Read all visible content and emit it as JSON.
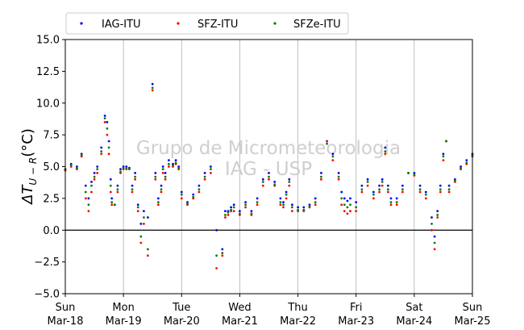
{
  "chart_data": {
    "type": "scatter",
    "title": "",
    "xlabel": "",
    "ylabel": "ΔT",
    "ylabel_subscript": "U − R",
    "ylabel_unit": "(°C)",
    "ylim": [
      -5,
      15
    ],
    "xlim": [
      0,
      7
    ],
    "yticks": [
      -5,
      -2.5,
      0,
      2.5,
      5,
      7.5,
      10,
      12.5,
      15
    ],
    "ytick_labels": [
      "−5.0",
      "−2.5",
      "0.0",
      "2.5",
      "5.0",
      "7.5",
      "10.0",
      "12.5",
      "15.0"
    ],
    "xticks": [
      0,
      1,
      2,
      3,
      4,
      5,
      6,
      7
    ],
    "xtick_labels": [
      [
        "Sun",
        "Mar-18"
      ],
      [
        "Mon",
        "Mar-19"
      ],
      [
        "Tue",
        "Mar-20"
      ],
      [
        "Wed",
        "Mar-21"
      ],
      [
        "Thu",
        "Mar-22"
      ],
      [
        "Fri",
        "Mar-23"
      ],
      [
        "Sat",
        "Mar-24"
      ],
      [
        "Sun",
        "Mar-25"
      ]
    ],
    "x_unit": "days since Sun Mar-18 00:00",
    "grid": "vertical at day ticks",
    "reference_line_y": 0,
    "legend_position": "top, above plot",
    "watermark": [
      "Grupo de Micrometeorologia",
      "IAG - USP"
    ],
    "series": [
      {
        "name": "IAG-ITU",
        "color": "#0000ff",
        "x": [
          0.0,
          0.1,
          0.2,
          0.28,
          0.35,
          0.4,
          0.45,
          0.5,
          0.55,
          0.62,
          0.68,
          0.72,
          0.75,
          0.78,
          0.8,
          0.85,
          0.9,
          0.95,
          1.0,
          1.05,
          1.1,
          1.15,
          1.2,
          1.25,
          1.3,
          1.35,
          1.42,
          1.5,
          1.55,
          1.6,
          1.65,
          1.68,
          1.72,
          1.78,
          1.85,
          1.9,
          1.95,
          2.0,
          2.1,
          2.2,
          2.3,
          2.4,
          2.5,
          2.6,
          2.7,
          2.75,
          2.8,
          2.85,
          2.9,
          3.0,
          3.1,
          3.2,
          3.3,
          3.4,
          3.5,
          3.6,
          3.7,
          3.75,
          3.8,
          3.85,
          3.9,
          4.0,
          4.1,
          4.2,
          4.3,
          4.4,
          4.5,
          4.6,
          4.7,
          4.75,
          4.8,
          4.85,
          4.9,
          5.0,
          5.1,
          5.2,
          5.3,
          5.4,
          5.45,
          5.5,
          5.55,
          5.6,
          5.7,
          5.8,
          5.9,
          6.0,
          6.1,
          6.2,
          6.3,
          6.35,
          6.4,
          6.45,
          6.5,
          6.55,
          6.6,
          6.7,
          6.8,
          6.9,
          7.0
        ],
        "values": [
          4.8,
          5.2,
          5.0,
          6.0,
          3.5,
          2.5,
          3.8,
          4.5,
          5.0,
          6.5,
          9.0,
          8.5,
          7.0,
          4.0,
          2.5,
          2.0,
          3.5,
          4.8,
          5.0,
          5.0,
          4.9,
          3.5,
          4.5,
          2.0,
          0.5,
          1.5,
          1.0,
          11.5,
          4.5,
          2.5,
          3.5,
          5.0,
          4.5,
          5.5,
          5.2,
          5.5,
          5.0,
          3.0,
          2.2,
          2.8,
          3.5,
          4.5,
          5.0,
          0.0,
          -1.5,
          1.5,
          1.5,
          1.8,
          2.0,
          1.5,
          2.2,
          1.5,
          2.5,
          4.0,
          4.5,
          3.8,
          2.5,
          2.2,
          3.0,
          4.0,
          2.0,
          1.8,
          1.8,
          2.0,
          2.5,
          4.5,
          7.0,
          6.0,
          4.5,
          3.0,
          2.5,
          2.3,
          2.5,
          2.2,
          3.5,
          4.0,
          3.0,
          3.5,
          4.0,
          6.5,
          3.5,
          2.5,
          2.5,
          3.5,
          4.5,
          4.5,
          3.5,
          3.0,
          1.0,
          -0.5,
          1.5,
          3.5,
          6.0,
          7.0,
          3.5,
          4.0,
          5.0,
          5.5,
          6.0
        ]
      },
      {
        "name": "SFZ-ITU",
        "color": "#ff0000",
        "x": [
          0.0,
          0.1,
          0.2,
          0.28,
          0.35,
          0.4,
          0.45,
          0.5,
          0.55,
          0.62,
          0.68,
          0.72,
          0.75,
          0.78,
          0.8,
          0.85,
          0.9,
          0.95,
          1.0,
          1.05,
          1.1,
          1.15,
          1.2,
          1.25,
          1.3,
          1.35,
          1.42,
          1.5,
          1.55,
          1.6,
          1.65,
          1.68,
          1.72,
          1.78,
          1.85,
          1.9,
          1.95,
          2.0,
          2.1,
          2.2,
          2.3,
          2.4,
          2.5,
          2.6,
          2.7,
          2.75,
          2.8,
          2.85,
          2.9,
          3.0,
          3.1,
          3.2,
          3.3,
          3.4,
          3.5,
          3.6,
          3.7,
          3.75,
          3.8,
          3.85,
          3.9,
          4.0,
          4.1,
          4.2,
          4.3,
          4.4,
          4.5,
          4.6,
          4.7,
          4.75,
          4.8,
          4.85,
          4.9,
          5.0,
          5.1,
          5.2,
          5.3,
          5.4,
          5.45,
          5.5,
          5.55,
          5.6,
          5.7,
          5.8,
          5.9,
          6.0,
          6.1,
          6.2,
          6.3,
          6.35,
          6.4,
          6.45,
          6.5,
          6.55,
          6.6,
          6.7,
          6.8,
          6.9,
          7.0
        ],
        "values": [
          4.7,
          5.0,
          4.8,
          5.8,
          2.5,
          1.5,
          3.0,
          4.0,
          4.5,
          6.0,
          8.5,
          7.5,
          6.0,
          3.0,
          2.0,
          2.0,
          3.0,
          4.5,
          4.8,
          4.8,
          4.8,
          3.0,
          4.0,
          1.5,
          -1.0,
          0.5,
          -2.0,
          11.0,
          4.0,
          2.0,
          3.0,
          4.5,
          4.0,
          5.0,
          5.0,
          5.2,
          4.8,
          2.5,
          2.0,
          2.5,
          3.0,
          4.0,
          4.5,
          -3.0,
          -2.0,
          1.0,
          1.2,
          1.5,
          1.5,
          1.2,
          1.8,
          1.2,
          2.0,
          3.5,
          4.0,
          3.5,
          2.0,
          1.8,
          2.5,
          3.5,
          1.5,
          1.5,
          1.5,
          1.8,
          2.0,
          4.0,
          7.0,
          5.5,
          4.0,
          2.0,
          1.5,
          1.3,
          1.5,
          1.5,
          3.0,
          3.5,
          2.5,
          3.0,
          3.5,
          6.0,
          3.0,
          2.0,
          2.0,
          3.0,
          4.5,
          4.3,
          3.0,
          2.5,
          0.0,
          -1.5,
          1.0,
          3.0,
          5.5,
          7.0,
          3.0,
          3.8,
          4.8,
          5.2,
          5.8
        ]
      },
      {
        "name": "SFZe-ITU",
        "color": "#008000",
        "x": [
          0.0,
          0.1,
          0.2,
          0.28,
          0.35,
          0.4,
          0.45,
          0.5,
          0.55,
          0.62,
          0.68,
          0.72,
          0.75,
          0.78,
          0.8,
          0.85,
          0.9,
          0.95,
          1.0,
          1.05,
          1.1,
          1.15,
          1.2,
          1.25,
          1.3,
          1.35,
          1.42,
          1.5,
          1.55,
          1.6,
          1.65,
          1.68,
          1.72,
          1.78,
          1.85,
          1.9,
          1.95,
          2.0,
          2.1,
          2.2,
          2.3,
          2.4,
          2.5,
          2.6,
          2.7,
          2.75,
          2.8,
          2.85,
          2.9,
          3.0,
          3.1,
          3.2,
          3.3,
          3.4,
          3.5,
          3.6,
          3.7,
          3.75,
          3.8,
          3.85,
          3.9,
          4.0,
          4.1,
          4.2,
          4.3,
          4.4,
          4.5,
          4.6,
          4.7,
          4.75,
          4.8,
          4.85,
          4.9,
          5.0,
          5.1,
          5.2,
          5.3,
          5.4,
          5.45,
          5.5,
          5.55,
          5.6,
          5.7,
          5.8,
          5.9,
          6.0,
          6.1,
          6.2,
          6.3,
          6.35,
          6.4,
          6.45,
          6.5,
          6.55,
          6.6,
          6.7,
          6.8,
          6.9,
          7.0
        ],
        "values": [
          4.8,
          5.1,
          4.9,
          5.9,
          3.0,
          2.0,
          3.5,
          4.2,
          4.8,
          6.2,
          8.8,
          8.0,
          6.5,
          3.5,
          2.2,
          2.0,
          3.2,
          4.6,
          4.9,
          4.9,
          4.8,
          3.2,
          4.2,
          1.8,
          -0.5,
          1.0,
          -1.5,
          11.2,
          4.2,
          2.2,
          3.2,
          4.8,
          4.2,
          5.2,
          5.1,
          5.3,
          4.9,
          2.8,
          2.1,
          2.6,
          3.2,
          4.2,
          4.8,
          -2.0,
          -1.8,
          1.2,
          1.4,
          1.6,
          1.8,
          1.3,
          2.0,
          1.3,
          2.2,
          3.8,
          4.2,
          3.6,
          2.2,
          2.0,
          2.8,
          3.8,
          1.8,
          1.6,
          1.6,
          1.9,
          2.2,
          4.2,
          6.8,
          5.8,
          4.2,
          2.5,
          2.0,
          1.8,
          2.0,
          1.8,
          3.2,
          3.8,
          2.8,
          3.2,
          3.8,
          6.2,
          3.2,
          2.2,
          2.2,
          3.2,
          4.5,
          4.4,
          3.2,
          2.8,
          0.5,
          -1.0,
          1.2,
          3.2,
          5.8,
          7.0,
          3.2,
          3.9,
          4.9,
          5.3,
          5.9
        ]
      }
    ]
  }
}
